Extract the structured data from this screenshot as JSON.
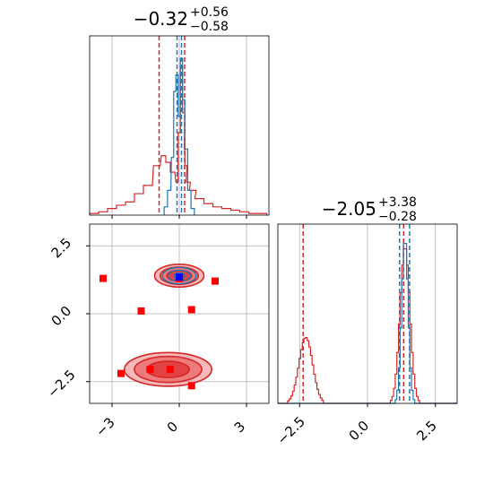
{
  "colors": {
    "red": "#d62728",
    "blue": "#1f77b4",
    "fill_light": "#f4a6a6",
    "fill_mid": "#ec6b6b",
    "fill_dark": "#e03535",
    "grid": "#b0b0b0",
    "marker": "#ff0000",
    "truth_blue": "#0000ff"
  },
  "chart_data": {
    "type": "corner",
    "grid": true,
    "params": [
      {
        "range": [
          -4.0,
          4.0
        ],
        "ticks": [
          -3,
          0,
          3
        ],
        "tick_labels": [
          "−3",
          "0",
          "3"
        ]
      },
      {
        "range": [
          -3.3,
          3.3
        ],
        "ticks": [
          -2.5,
          0.0,
          2.5
        ],
        "tick_labels": [
          "−2.5",
          "0.0",
          "2.5"
        ]
      }
    ],
    "titles": [
      {
        "median": "−0.32",
        "plus": "+0.56",
        "minus": "−0.58"
      },
      {
        "median": "−2.05",
        "plus": "+3.38",
        "minus": "−0.28"
      }
    ],
    "series": [
      {
        "color": "red",
        "hist_x_centers": [
          -3.8,
          -3.4,
          -3.0,
          -2.6,
          -2.2,
          -1.8,
          -1.4,
          -1.0,
          -0.7,
          -0.5,
          -0.3,
          -0.1,
          0.0,
          0.1,
          0.2,
          0.3,
          0.4,
          0.6,
          0.9,
          1.3,
          1.7,
          2.1,
          2.5,
          2.9,
          3.3,
          3.7
        ],
        "hist_x_counts": [
          0.01,
          0.02,
          0.04,
          0.06,
          0.08,
          0.13,
          0.18,
          0.3,
          0.36,
          0.32,
          0.26,
          0.2,
          0.5,
          0.9,
          0.62,
          0.3,
          0.2,
          0.15,
          0.1,
          0.07,
          0.05,
          0.04,
          0.03,
          0.02,
          0.01,
          0.01
        ],
        "quantiles_x": [
          -0.9,
          0.24
        ],
        "hist_y_peaks": [
          {
            "center": -2.3,
            "width": 0.25,
            "height": 0.4
          },
          {
            "center": 1.35,
            "width": 0.18,
            "height": 0.95
          }
        ],
        "quantiles_y": [
          -2.37,
          1.33
        ],
        "contours": [
          {
            "cx": 0.0,
            "cy": 1.4,
            "rx": [
              1.1,
              0.85,
              0.55
            ],
            "ry": [
              0.42,
              0.32,
              0.2
            ]
          },
          {
            "cx": -0.5,
            "cy": -2.05,
            "rx": [
              1.95,
              1.5,
              0.95
            ],
            "ry": [
              0.62,
              0.48,
              0.3
            ]
          }
        ]
      },
      {
        "color": "blue",
        "hist_x_centers": [
          -0.6,
          -0.45,
          -0.3,
          -0.2,
          -0.1,
          0.0,
          0.1,
          0.2,
          0.3,
          0.45,
          0.6
        ],
        "hist_x_counts": [
          0.05,
          0.15,
          0.35,
          0.75,
          0.85,
          0.6,
          0.95,
          0.7,
          0.4,
          0.15,
          0.04
        ],
        "quantiles_x": [
          -0.1,
          0.1
        ],
        "hist_y_peaks": [
          {
            "center": 1.35,
            "width": 0.12,
            "height": 1.0
          }
        ],
        "quantiles_y": [
          1.18,
          1.55
        ],
        "contours": [
          {
            "cx": 0.0,
            "cy": 1.4,
            "rx": [
              0.75,
              0.5,
              0.25
            ],
            "ry": [
              0.3,
              0.2,
              0.1
            ]
          }
        ]
      }
    ],
    "markers": [
      {
        "x": -3.4,
        "y": 1.3
      },
      {
        "x": -1.7,
        "y": 0.1
      },
      {
        "x": 0.55,
        "y": 0.15
      },
      {
        "x": 1.6,
        "y": 1.2
      },
      {
        "x": -2.6,
        "y": -2.2
      },
      {
        "x": -1.3,
        "y": -2.05
      },
      {
        "x": -0.4,
        "y": -2.05
      },
      {
        "x": 0.55,
        "y": -2.65
      },
      {
        "x": 0.0,
        "y": 1.3
      }
    ],
    "truth_marker": {
      "x": 0.0,
      "y": 1.35
    }
  }
}
